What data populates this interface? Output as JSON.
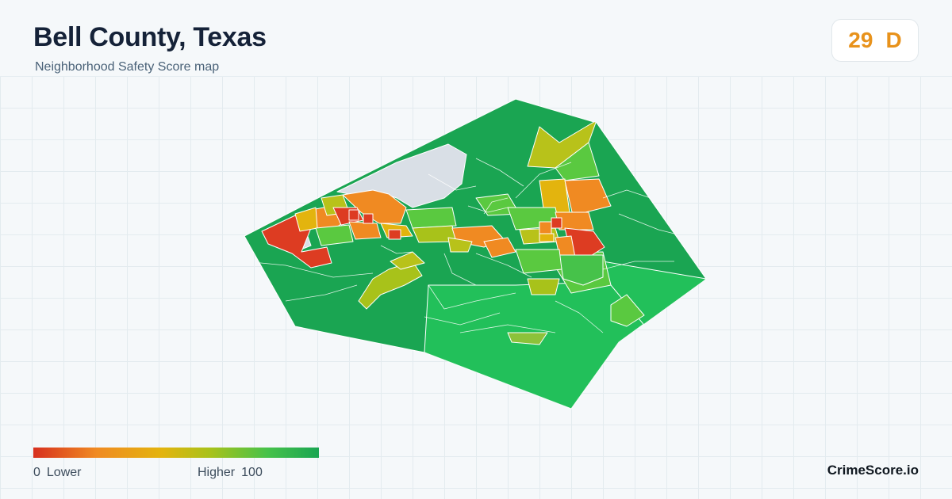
{
  "header": {
    "title": "Bell County, Texas",
    "subtitle": "Neighborhood Safety Score map"
  },
  "score": {
    "value": "29",
    "grade": "D",
    "color": "#e8921b"
  },
  "legend": {
    "min_value": "0",
    "min_label": "Lower",
    "max_label": "Higher",
    "max_value": "100",
    "colors": [
      "#d7301f",
      "#f08a22",
      "#e3b40e",
      "#a8c21a",
      "#46c24a",
      "#1aa552"
    ]
  },
  "map": {
    "region": "Bell County",
    "no_data_color": "#d9dfe6",
    "score_colors": {
      "lowest": "#dd3c22",
      "low": "#f08a22",
      "mid_low": "#e3b40e",
      "mid": "#b8c21a",
      "mid_high": "#5ac940",
      "high": "#22c05a",
      "highest": "#1aa552"
    }
  },
  "brand": "CrimeScore.io"
}
